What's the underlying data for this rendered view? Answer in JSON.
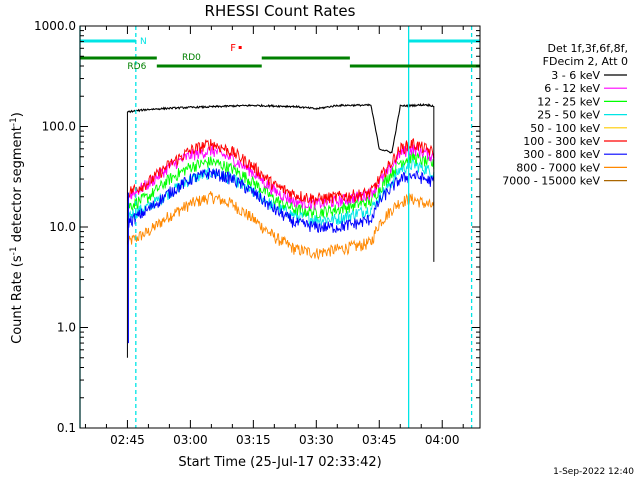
{
  "chart_data": {
    "type": "line",
    "title": "RHESSI Count Rates",
    "xlabel": "Start Time (25-Jul-17 02:33:42)",
    "ylabel_main": "Count Rate (s",
    "ylabel_sup": "-1",
    "ylabel_tail": " detector segment",
    "ylabel_sup2": "-1",
    "ylabel_close": ")",
    "yscale": "log",
    "ylim": [
      0.1,
      1000
    ],
    "xlim": [
      "02:33:42",
      "04:09:00"
    ],
    "grid": false,
    "legend_position": "right",
    "yticks": [
      {
        "value": 0.1,
        "label": "0.1"
      },
      {
        "value": 1,
        "label": "1.0"
      },
      {
        "value": 10,
        "label": "10.0"
      },
      {
        "value": 100,
        "label": "100.0"
      },
      {
        "value": 1000,
        "label": "1000.0"
      }
    ],
    "xticks": [
      {
        "value": "02:45",
        "label": "02:45"
      },
      {
        "value": "03:00",
        "label": "03:00"
      },
      {
        "value": "03:15",
        "label": "03:15"
      },
      {
        "value": "03:30",
        "label": "03:30"
      },
      {
        "value": "03:45",
        "label": "03:45"
      },
      {
        "value": "04:00",
        "label": "04:00"
      }
    ],
    "legend_header": [
      "Det 1f,3f,6f,8f,",
      "FDecim 2, Att 0"
    ],
    "series": [
      {
        "name": "3 - 6 keV",
        "color": "#000000"
      },
      {
        "name": "6 - 12 keV",
        "color": "#ff00ff"
      },
      {
        "name": "12 - 25 keV",
        "color": "#00ff00"
      },
      {
        "name": "25 - 50 keV",
        "color": "#00e5e5"
      },
      {
        "name": "50 - 100 keV",
        "color": "#ffcc00"
      },
      {
        "name": "100 - 300 keV",
        "color": "#ff0000"
      },
      {
        "name": "300 - 800 keV",
        "color": "#0000ff"
      },
      {
        "name": "800 - 7000 keV",
        "color": "#ff8800"
      },
      {
        "name": "7000 - 15000 keV",
        "color": "#aa6600"
      }
    ],
    "data_start": "02:45:00",
    "data_end": "03:58:00",
    "profiles": {
      "times": [
        "02:45",
        "02:50",
        "02:55",
        "03:00",
        "03:05",
        "03:10",
        "03:15",
        "03:20",
        "03:25",
        "03:30",
        "03:35",
        "03:40",
        "03:43",
        "03:45",
        "03:48",
        "03:50",
        "03:53",
        "03:56",
        "03:58"
      ],
      "3 - 6 keV": [
        140,
        148,
        152,
        155,
        157,
        160,
        162,
        160,
        158,
        150,
        162,
        163,
        163,
        60,
        55,
        160,
        162,
        165,
        160
      ],
      "6 - 12 keV": [
        20,
        27,
        40,
        52,
        58,
        48,
        35,
        23,
        18,
        17,
        18,
        20,
        22,
        28,
        40,
        55,
        60,
        55,
        50
      ],
      "12 - 25 keV": [
        16,
        20,
        30,
        40,
        45,
        38,
        28,
        19,
        15,
        14,
        15,
        17,
        18,
        24,
        35,
        45,
        50,
        45,
        42
      ],
      "25 - 50 keV": [
        13,
        16,
        22,
        30,
        35,
        30,
        22,
        16,
        13,
        12,
        12,
        14,
        15,
        20,
        28,
        38,
        42,
        38,
        35
      ],
      "100 - 300 keV": [
        22,
        28,
        42,
        58,
        68,
        56,
        40,
        26,
        21,
        19,
        20,
        21,
        22,
        30,
        45,
        60,
        68,
        60,
        55
      ],
      "300 - 800 keV": [
        11,
        15,
        22,
        30,
        35,
        30,
        22,
        15,
        11,
        10,
        10,
        11,
        12,
        18,
        25,
        30,
        33,
        30,
        28
      ],
      "800 - 7000 keV": [
        7,
        9,
        13,
        17,
        20,
        17,
        12,
        8,
        6,
        5.5,
        6,
        6.5,
        7,
        11,
        15,
        18,
        19,
        17,
        16
      ]
    },
    "attenuator_states": [
      {
        "label": "N",
        "segments": [
          [
            "02:33:42",
            "02:47:00"
          ],
          [
            "03:52:00",
            "04:09:00"
          ]
        ],
        "color": "#00e5e5"
      },
      {
        "label": "RD6",
        "segments": [
          [
            "02:33:42",
            "02:52:00"
          ]
        ],
        "color": "#008000"
      },
      {
        "label": "RD0",
        "segments": [
          [
            "02:52:00",
            "03:17:00"
          ],
          [
            "03:17:00",
            "03:38:00"
          ],
          [
            "03:38:00",
            "04:09:00"
          ]
        ],
        "color": "#008000"
      },
      {
        "label": "F",
        "color": "#ff0000"
      }
    ],
    "markers": [
      "02:33:42",
      "02:47:00",
      "03:52:00",
      "04:07:00"
    ]
  },
  "footer": {
    "date": "1-Sep-2022 12:40"
  }
}
